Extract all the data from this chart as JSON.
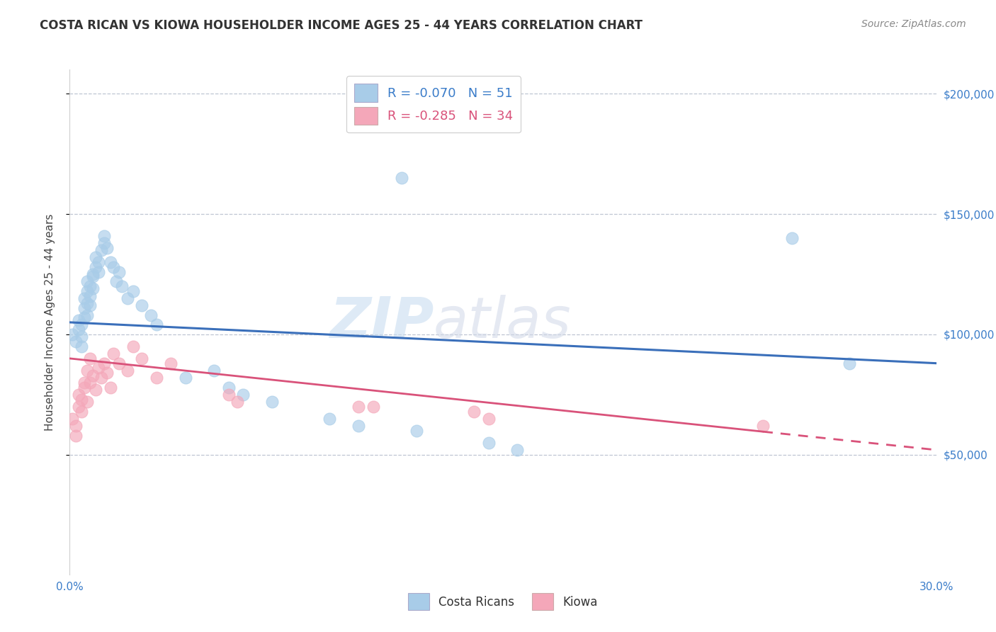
{
  "title": "COSTA RICAN VS KIOWA HOUSEHOLDER INCOME AGES 25 - 44 YEARS CORRELATION CHART",
  "source": "Source: ZipAtlas.com",
  "ylabel": "Householder Income Ages 25 - 44 years",
  "xlim": [
    0.0,
    0.3
  ],
  "ylim": [
    0,
    210000
  ],
  "legend_R1": "-0.070",
  "legend_N1": "51",
  "legend_R2": "-0.285",
  "legend_N2": "34",
  "color_blue": "#a8cce8",
  "color_pink": "#f4a7b9",
  "color_blue_line": "#3a6fba",
  "color_pink_line": "#d9527a",
  "watermark_zip": "ZIP",
  "watermark_atlas": "atlas",
  "background_color": "#ffffff",
  "grid_color": "#b0b8c8",
  "blue_x": [
    0.001,
    0.002,
    0.003,
    0.003,
    0.004,
    0.004,
    0.004,
    0.005,
    0.005,
    0.005,
    0.006,
    0.006,
    0.006,
    0.006,
    0.007,
    0.007,
    0.007,
    0.008,
    0.008,
    0.008,
    0.009,
    0.009,
    0.01,
    0.01,
    0.011,
    0.012,
    0.012,
    0.013,
    0.014,
    0.015,
    0.016,
    0.017,
    0.018,
    0.02,
    0.022,
    0.025,
    0.028,
    0.03,
    0.04,
    0.05,
    0.055,
    0.06,
    0.07,
    0.09,
    0.1,
    0.115,
    0.12,
    0.145,
    0.155,
    0.25,
    0.27
  ],
  "blue_y": [
    100000,
    97000,
    102000,
    106000,
    95000,
    99000,
    104000,
    107000,
    111000,
    115000,
    108000,
    113000,
    118000,
    122000,
    112000,
    116000,
    120000,
    125000,
    119000,
    124000,
    128000,
    132000,
    130000,
    126000,
    135000,
    138000,
    141000,
    136000,
    130000,
    128000,
    122000,
    126000,
    120000,
    115000,
    118000,
    112000,
    108000,
    104000,
    82000,
    85000,
    78000,
    75000,
    72000,
    65000,
    62000,
    165000,
    60000,
    55000,
    52000,
    140000,
    88000
  ],
  "pink_x": [
    0.001,
    0.002,
    0.002,
    0.003,
    0.003,
    0.004,
    0.004,
    0.005,
    0.005,
    0.006,
    0.006,
    0.007,
    0.007,
    0.008,
    0.009,
    0.01,
    0.011,
    0.012,
    0.013,
    0.014,
    0.015,
    0.017,
    0.02,
    0.022,
    0.025,
    0.03,
    0.035,
    0.055,
    0.058,
    0.1,
    0.105,
    0.14,
    0.145,
    0.24
  ],
  "pink_y": [
    65000,
    58000,
    62000,
    70000,
    75000,
    68000,
    73000,
    80000,
    78000,
    72000,
    85000,
    80000,
    90000,
    83000,
    77000,
    86000,
    82000,
    88000,
    84000,
    78000,
    92000,
    88000,
    85000,
    95000,
    90000,
    82000,
    88000,
    75000,
    72000,
    70000,
    70000,
    68000,
    65000,
    62000
  ]
}
